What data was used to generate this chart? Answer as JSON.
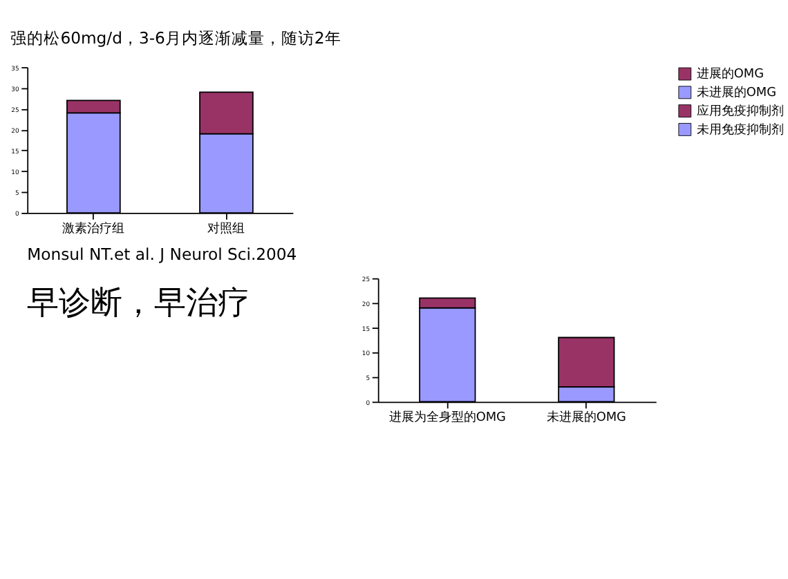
{
  "chart_data": [
    {
      "type": "bar",
      "title": "强的松60mg/d，3-6月内逐渐减量，随访2年",
      "categories": [
        "激素治疗组",
        "对照组"
      ],
      "stacked": true,
      "legend": "right",
      "ylim": [
        0,
        35
      ],
      "yticks": [
        0,
        5,
        10,
        15,
        20,
        25,
        30,
        35
      ],
      "annotations": [
        "Monsul NT.et al. J Neurol Sci.2004"
      ],
      "series": [
        {
          "name": "未进展的OMG",
          "color": "#9999ff",
          "values": [
            24,
            19
          ]
        },
        {
          "name": "进展的OMG",
          "color": "#993366",
          "values": [
            3,
            10
          ]
        }
      ]
    },
    {
      "type": "bar",
      "categories": [
        "进展为全身型的OMG",
        "未进展的OMG"
      ],
      "stacked": true,
      "legend": "right",
      "ylim": [
        0,
        25
      ],
      "yticks": [
        0,
        5,
        10,
        15,
        20,
        25
      ],
      "annotations": [
        "早诊断，早治疗"
      ],
      "series": [
        {
          "name": "未用免疫抑制剂",
          "color": "#9999ff",
          "values": [
            19,
            3
          ]
        },
        {
          "name": "应用免疫抑制剂",
          "color": "#993366",
          "values": [
            2,
            10
          ]
        }
      ]
    }
  ]
}
